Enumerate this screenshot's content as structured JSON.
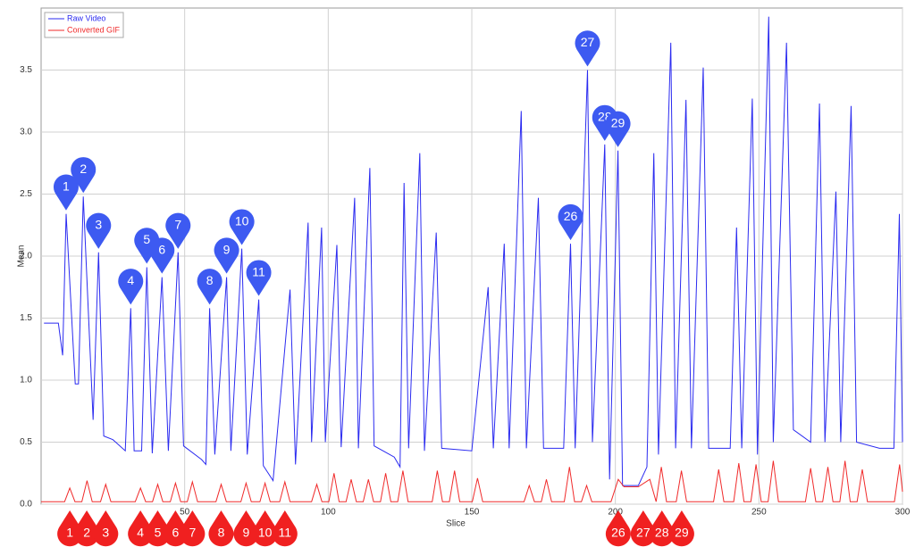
{
  "chart_data": {
    "type": "line",
    "xlabel": "Slice",
    "ylabel": "Mean",
    "xlim": [
      0,
      300
    ],
    "ylim": [
      0,
      4
    ],
    "xticks": [
      50,
      100,
      150,
      200,
      250,
      300
    ],
    "yticks": [
      {
        "value": 0,
        "label": "0.0"
      },
      0.5,
      {
        "value": 1,
        "label": "1.0"
      },
      1.5,
      {
        "value": 2,
        "label": "2.0"
      },
      2.5,
      {
        "value": 3,
        "label": "3.0"
      },
      3.5
    ],
    "grid": true,
    "legend": "top-left",
    "series": [
      {
        "name": "Raw Video",
        "color": "#2b2bf0",
        "x": [
          1,
          6,
          7.5,
          8.7,
          11.9,
          13,
          14.7,
          18.1,
          20,
          21.8,
          25,
          29.3,
          31.2,
          32.4,
          35,
          36.8,
          38.7,
          42.1,
          44.3,
          47.7,
          49.6,
          55.9,
          57.4,
          58.7,
          60.5,
          64.6,
          66.1,
          69.9,
          71.8,
          75.8,
          77.4,
          80.8,
          86.7,
          88.6,
          93,
          94.2,
          97.7,
          99,
          103,
          104.5,
          109.2,
          110.5,
          114.5,
          116,
          123,
          125,
          126.4,
          128,
          131.9,
          133.5,
          137.6,
          139.5,
          150,
          155.7,
          157.5,
          161.3,
          163,
          167.2,
          169,
          173.2,
          175,
          182,
          184.4,
          186,
          190.3,
          192,
          196.3,
          198,
          200.9,
          202.5,
          208,
          211,
          213.4,
          215,
          219.3,
          221,
          224.6,
          226.5,
          230.6,
          232.5,
          240,
          242.2,
          244,
          247.7,
          249.5,
          253.4,
          255,
          259.6,
          262,
          268,
          271.1,
          273,
          276.8,
          278.5,
          282.1,
          284,
          292,
          297,
          298.9,
          300
        ],
        "values": [
          1.46,
          1.46,
          1.2,
          2.34,
          0.97,
          0.97,
          2.48,
          0.68,
          2.03,
          0.55,
          0.52,
          0.43,
          1.58,
          0.43,
          0.43,
          1.91,
          0.41,
          1.83,
          0.43,
          2.03,
          0.47,
          0.36,
          0.32,
          1.58,
          0.4,
          1.83,
          0.43,
          2.06,
          0.4,
          1.65,
          0.31,
          0.19,
          1.73,
          0.32,
          2.27,
          0.5,
          2.23,
          0.5,
          2.09,
          0.46,
          2.47,
          0.45,
          2.71,
          0.47,
          0.38,
          0.3,
          2.59,
          0.45,
          2.83,
          0.43,
          2.19,
          0.45,
          0.43,
          1.75,
          0.45,
          2.1,
          0.45,
          3.17,
          0.45,
          2.47,
          0.45,
          0.45,
          2.1,
          0.45,
          3.5,
          0.5,
          2.9,
          0.2,
          2.85,
          0.15,
          0.15,
          0.3,
          2.83,
          0.4,
          3.72,
          0.45,
          3.26,
          0.45,
          3.52,
          0.45,
          0.45,
          2.23,
          0.45,
          3.27,
          0.4,
          3.93,
          0.5,
          3.72,
          0.6,
          0.5,
          3.23,
          0.5,
          2.52,
          0.5,
          3.21,
          0.5,
          0.45,
          0.45,
          2.34,
          0.5
        ]
      },
      {
        "name": "Converted GIF",
        "color": "#f02b2b",
        "x": [
          0,
          8.2,
          10,
          11.8,
          14.2,
          16,
          17.8,
          20.7,
          22.5,
          24.3,
          32.8,
          34.6,
          36.4,
          38.8,
          40.6,
          42.4,
          45,
          46.8,
          48.6,
          50.9,
          52.7,
          54.5,
          60.9,
          62.7,
          64.5,
          69.6,
          71.4,
          73.2,
          76.2,
          78,
          79.8,
          83.1,
          84.9,
          86.7,
          94.2,
          96,
          97.8,
          100.2,
          102,
          103.8,
          106.2,
          108,
          109.8,
          112.2,
          114,
          115.8,
          118.2,
          120,
          121.8,
          124.2,
          126,
          127.8,
          136.2,
          138,
          139.8,
          142.2,
          144,
          145.8,
          150.2,
          152,
          153.8,
          168.2,
          170,
          171.8,
          174.2,
          176,
          177.8,
          182.2,
          184,
          185.8,
          188.2,
          190,
          191.8,
          198.5,
          201,
          203,
          208,
          212,
          214.2,
          216,
          217.8,
          221.2,
          223,
          224.8,
          234.2,
          236,
          237.8,
          241.2,
          243,
          244.8,
          247.2,
          249,
          250.8,
          253.2,
          255,
          256.8,
          266.2,
          268,
          269.8,
          272.2,
          274,
          275.8,
          278.2,
          280,
          281.8,
          284.2,
          286,
          287.8,
          297.2,
          299,
          300
        ],
        "values": [
          0.02,
          0.02,
          0.13,
          0.02,
          0.02,
          0.19,
          0.02,
          0.02,
          0.16,
          0.02,
          0.02,
          0.13,
          0.02,
          0.02,
          0.16,
          0.02,
          0.02,
          0.17,
          0.02,
          0.02,
          0.18,
          0.02,
          0.02,
          0.16,
          0.02,
          0.02,
          0.17,
          0.02,
          0.02,
          0.17,
          0.02,
          0.02,
          0.18,
          0.02,
          0.02,
          0.16,
          0.02,
          0.02,
          0.25,
          0.02,
          0.02,
          0.2,
          0.02,
          0.02,
          0.2,
          0.02,
          0.02,
          0.25,
          0.02,
          0.02,
          0.27,
          0.02,
          0.02,
          0.27,
          0.02,
          0.02,
          0.27,
          0.02,
          0.02,
          0.21,
          0.02,
          0.02,
          0.15,
          0.02,
          0.02,
          0.2,
          0.02,
          0.02,
          0.3,
          0.02,
          0.02,
          0.15,
          0.02,
          0.02,
          0.2,
          0.14,
          0.14,
          0.2,
          0.02,
          0.3,
          0.02,
          0.02,
          0.27,
          0.02,
          0.02,
          0.28,
          0.02,
          0.02,
          0.33,
          0.02,
          0.02,
          0.32,
          0.02,
          0.02,
          0.35,
          0.02,
          0.02,
          0.29,
          0.02,
          0.02,
          0.3,
          0.02,
          0.02,
          0.35,
          0.02,
          0.02,
          0.28,
          0.02,
          0.02,
          0.32,
          0.1
        ]
      }
    ],
    "markers": {
      "blue": [
        {
          "label": "1",
          "x": 8.7,
          "y": 2.34
        },
        {
          "label": "2",
          "x": 14.7,
          "y": 2.48
        },
        {
          "label": "3",
          "x": 20,
          "y": 2.03
        },
        {
          "label": "4",
          "x": 31.2,
          "y": 1.58
        },
        {
          "label": "5",
          "x": 36.8,
          "y": 1.91
        },
        {
          "label": "6",
          "x": 42.1,
          "y": 1.83
        },
        {
          "label": "7",
          "x": 47.7,
          "y": 2.03
        },
        {
          "label": "8",
          "x": 58.7,
          "y": 1.58
        },
        {
          "label": "9",
          "x": 64.6,
          "y": 1.83
        },
        {
          "label": "10",
          "x": 69.9,
          "y": 2.06
        },
        {
          "label": "11",
          "x": 75.8,
          "y": 1.65
        },
        {
          "label": "26",
          "x": 184.4,
          "y": 2.1
        },
        {
          "label": "27",
          "x": 190.3,
          "y": 3.5
        },
        {
          "label": "28",
          "x": 196.3,
          "y": 2.9
        },
        {
          "label": "29",
          "x": 200.9,
          "y": 2.85
        }
      ],
      "red": [
        {
          "label": "1",
          "x": 10
        },
        {
          "label": "2",
          "x": 15.9
        },
        {
          "label": "3",
          "x": 22.5
        },
        {
          "label": "4",
          "x": 34.6
        },
        {
          "label": "5",
          "x": 40.6
        },
        {
          "label": "6",
          "x": 46.8
        },
        {
          "label": "7",
          "x": 52.7
        },
        {
          "label": "8",
          "x": 62.7
        },
        {
          "label": "9",
          "x": 71.4
        },
        {
          "label": "10",
          "x": 78
        },
        {
          "label": "11",
          "x": 84.9
        },
        {
          "label": "26",
          "x": 201
        },
        {
          "label": "27",
          "x": 209.7
        },
        {
          "label": "28",
          "x": 216.2
        },
        {
          "label": "29",
          "x": 223.1
        }
      ]
    }
  }
}
